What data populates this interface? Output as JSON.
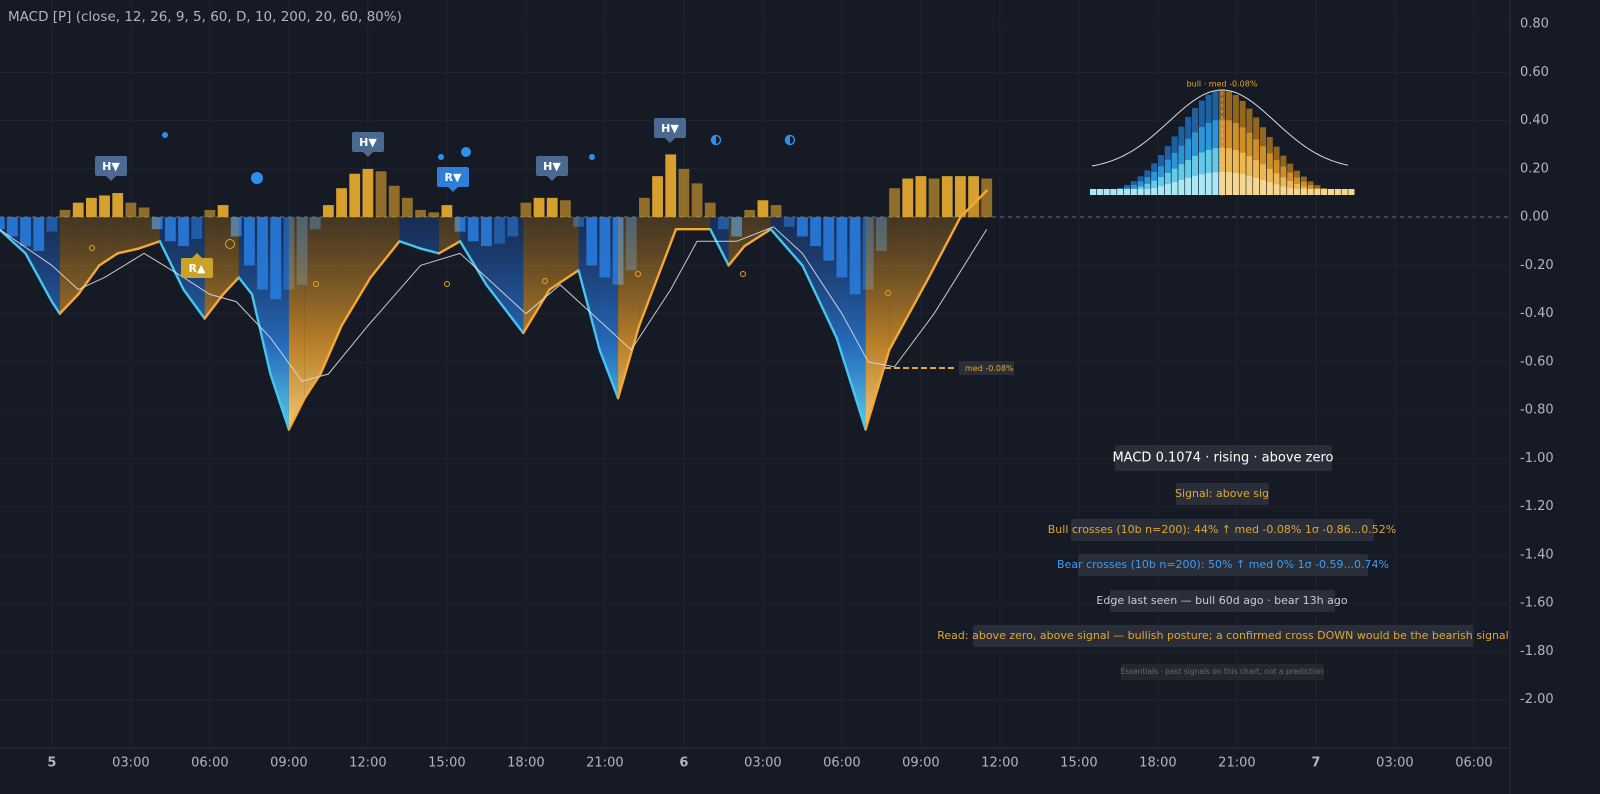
{
  "chart_data": {
    "type": "macd",
    "title": "MACD [P] (close, 12, 26, 9, 5, 60, D, 10, 200, 20, 60, 80%)",
    "xlim": [
      -1.97,
      55.37
    ],
    "ylim": [
      -2.2,
      0.9
    ],
    "xticks": [
      {
        "value": 0,
        "label": "5"
      },
      {
        "value": 3,
        "label": "03:00"
      },
      {
        "value": 6,
        "label": "06:00"
      },
      {
        "value": 9,
        "label": "09:00"
      },
      {
        "value": 12,
        "label": "12:00"
      },
      {
        "value": 15,
        "label": "15:00"
      },
      {
        "value": 18,
        "label": "18:00"
      },
      {
        "value": 21,
        "label": "21:00"
      },
      {
        "value": 24,
        "label": "6"
      },
      {
        "value": 27,
        "label": "03:00"
      },
      {
        "value": 30,
        "label": "06:00"
      },
      {
        "value": 33,
        "label": "09:00"
      },
      {
        "value": 36,
        "label": "12:00"
      },
      {
        "value": 39,
        "label": "15:00"
      },
      {
        "value": 42,
        "label": "18:00"
      },
      {
        "value": 45,
        "label": "21:00"
      },
      {
        "value": 48,
        "label": "7"
      },
      {
        "value": 51,
        "label": "03:00"
      },
      {
        "value": 54,
        "label": "06:00"
      }
    ],
    "yticks": [
      {
        "value": 0.8,
        "label": "0.80"
      },
      {
        "value": 0.6,
        "label": "0.60"
      },
      {
        "value": 0.4,
        "label": "0.40"
      },
      {
        "value": 0.2,
        "label": "0.20"
      },
      {
        "value": 0,
        "label": "0.00"
      },
      {
        "value": -0.2,
        "label": "-0.20"
      },
      {
        "value": -0.4,
        "label": "-0.40"
      },
      {
        "value": -0.6,
        "label": "-0.60"
      },
      {
        "value": -0.8,
        "label": "-0.80"
      },
      {
        "value": -1,
        "label": "-1.00"
      },
      {
        "value": -1.2,
        "label": "-1.20"
      },
      {
        "value": -1.4,
        "label": "-1.40"
      },
      {
        "value": -1.6,
        "label": "-1.60"
      },
      {
        "value": -1.8,
        "label": "-1.80"
      },
      {
        "value": -2,
        "label": "-2.00"
      }
    ],
    "grid": true,
    "histogram": {
      "color_up": "#e2a72e",
      "color_down": "#2f8ff0",
      "x": [
        -2,
        -1.5,
        -1,
        -0.5,
        0,
        0.5,
        1,
        1.5,
        2,
        2.5,
        3,
        3.5,
        4,
        4.5,
        5,
        5.5,
        6,
        6.5,
        7,
        7.5,
        8,
        8.5,
        9,
        9.5,
        10,
        10.5,
        11,
        11.5,
        12,
        12.5,
        13,
        13.5,
        14,
        14.5,
        15,
        15.5,
        16,
        16.5,
        17,
        17.5,
        18,
        18.5,
        19,
        19.5,
        20,
        20.5,
        21,
        21.5,
        22,
        22.5,
        23,
        23.5,
        24,
        24.5,
        25,
        25.5,
        26,
        26.5,
        27,
        27.5,
        28,
        28.5,
        29,
        29.5,
        30,
        30.5,
        31,
        31.5,
        32,
        32.5,
        33,
        33.5,
        34,
        34.5,
        35,
        35.5
      ],
      "values": [
        -0.05,
        -0.08,
        -0.12,
        -0.14,
        -0.06,
        0.03,
        0.06,
        0.08,
        0.09,
        0.1,
        0.06,
        0.04,
        -0.05,
        -0.1,
        -0.12,
        -0.09,
        0.03,
        0.05,
        -0.08,
        -0.2,
        -0.3,
        -0.34,
        -0.3,
        -0.28,
        -0.05,
        0.05,
        0.12,
        0.18,
        0.2,
        0.19,
        0.13,
        0.08,
        0.03,
        0.02,
        0.05,
        -0.06,
        -0.1,
        -0.12,
        -0.11,
        -0.08,
        0.06,
        0.08,
        0.08,
        0.07,
        -0.04,
        -0.2,
        -0.25,
        -0.28,
        -0.22,
        0.08,
        0.17,
        0.26,
        0.2,
        0.14,
        0.06,
        -0.05,
        -0.08,
        0.03,
        0.07,
        0.05,
        -0.04,
        -0.08,
        -0.12,
        -0.18,
        -0.25,
        -0.32,
        -0.3,
        -0.14,
        0.12,
        0.16,
        0.17,
        0.16,
        0.17,
        0.17,
        0.17,
        0.16
      ]
    },
    "macd": {
      "color_up": "#f6a833",
      "color_down": "#45c6ee",
      "x": [
        -2,
        -1,
        0,
        0.3,
        1,
        1.8,
        2.5,
        3.3,
        4.1,
        5,
        5.8,
        6.5,
        7.1,
        7.6,
        8.3,
        9,
        9.6,
        10.2,
        11,
        12.1,
        13.2,
        14,
        14.7,
        15.5,
        16.5,
        17.9,
        18.9,
        20,
        20.8,
        21.5,
        22.3,
        23.7,
        25,
        25.7,
        26.3,
        27.3,
        28.5,
        29.8,
        30.9,
        31.8,
        33.3,
        34.5,
        35.5
      ],
      "values": [
        -0.05,
        -0.15,
        -0.35,
        -0.4,
        -0.32,
        -0.2,
        -0.15,
        -0.13,
        -0.1,
        -0.3,
        -0.42,
        -0.32,
        -0.25,
        -0.32,
        -0.65,
        -0.88,
        -0.75,
        -0.65,
        -0.45,
        -0.25,
        -0.1,
        -0.13,
        -0.15,
        -0.1,
        -0.28,
        -0.48,
        -0.3,
        -0.22,
        -0.55,
        -0.75,
        -0.45,
        -0.05,
        -0.05,
        -0.2,
        -0.12,
        -0.05,
        -0.2,
        -0.5,
        -0.88,
        -0.55,
        -0.25,
        0,
        0.11
      ]
    },
    "signal": {
      "color": "#d9dde6",
      "x": [
        -2,
        0,
        1,
        2,
        3.5,
        5,
        6,
        7,
        8.3,
        9.5,
        10.5,
        12,
        14,
        15.5,
        17,
        18,
        19.3,
        20.5,
        22,
        23.5,
        24.5,
        26,
        27.4,
        28.5,
        30,
        31,
        32,
        33.5,
        35.5
      ],
      "values": [
        -0.05,
        -0.2,
        -0.3,
        -0.25,
        -0.15,
        -0.25,
        -0.32,
        -0.35,
        -0.5,
        -0.68,
        -0.65,
        -0.45,
        -0.2,
        -0.15,
        -0.3,
        -0.4,
        -0.28,
        -0.4,
        -0.55,
        -0.3,
        -0.1,
        -0.1,
        -0.04,
        -0.15,
        -0.4,
        -0.6,
        -0.62,
        -0.4,
        -0.05
      ]
    },
    "annotations": [
      "H▼",
      "R▲",
      "H▼",
      "R▼",
      "H▼",
      "H▼"
    ],
    "median_label": "med -0.08%",
    "distribution_label": "bull · med -0.08%",
    "panel": {
      "headline": "MACD 0.1074 · rising · above zero",
      "signal": "Signal: above sig",
      "bull": "Bull crosses (10b n=200):  44% ↑  med -0.08%  1σ -0.86...0.52%",
      "bear": "Bear crosses (10b n=200):  50% ↑  med 0%  1σ -0.59...0.74%",
      "edge": "Edge last seen — bull 60d ago · bear 13h ago",
      "read": "Read: above zero, above signal — bullish posture; a confirmed cross DOWN would be the bearish signal",
      "footer": "Essentials · past signals on this chart, not a prediction"
    }
  }
}
